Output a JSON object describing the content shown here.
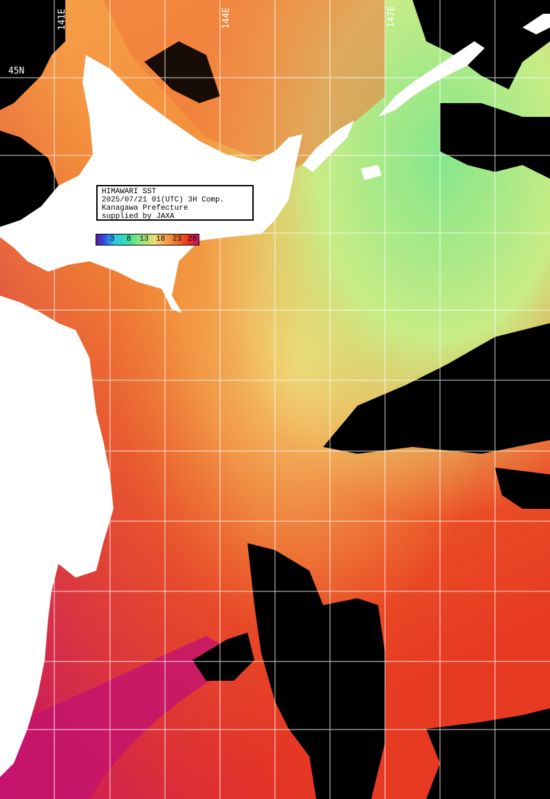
{
  "map": {
    "info_lines": [
      "HIMAWARI SST",
      "2025/07/21 01(UTC) 3H Comp.",
      "Kanagawa Prefecture",
      "supplied by JAXA"
    ],
    "colorbar_ticks": [
      "3",
      "8",
      "13",
      "18",
      "23",
      "28"
    ],
    "lon_labels": [
      "141E",
      "144E",
      "147E"
    ],
    "lat_labels": [
      "45N"
    ],
    "colors": {
      "land": "#ffffff",
      "cloud_nodata": "#000000",
      "grid": "#ffffff",
      "sst_warm_red": "#e8321e",
      "sst_orange": "#f2742a",
      "sst_light_orange": "#f6a04a",
      "sst_yellow": "#eedc74",
      "sst_green": "#8ee67e",
      "sst_hot_magenta": "#c8106e"
    }
  }
}
